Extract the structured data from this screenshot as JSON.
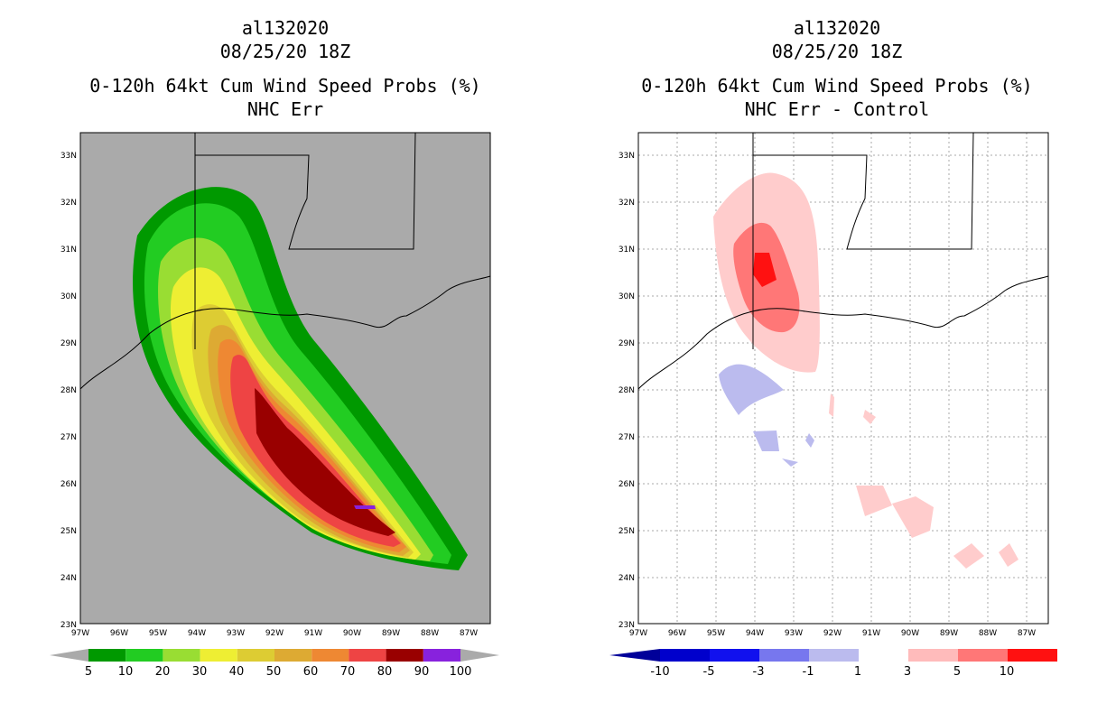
{
  "left_panel": {
    "storm_id": "al132020",
    "datetime": "08/25/20 18Z",
    "product": "0-120h 64kt Cum Wind Speed Probs (%)",
    "subtitle": "NHC Err",
    "colorbar": {
      "labels": [
        "5",
        "10",
        "20",
        "30",
        "40",
        "50",
        "60",
        "70",
        "80",
        "90",
        "100"
      ],
      "colors": [
        "#009900",
        "#22cc22",
        "#99dd33",
        "#eeee33",
        "#ddcc33",
        "#ddaa33",
        "#ee8833",
        "#ee4444",
        "#990000",
        "#8822dd"
      ]
    }
  },
  "right_panel": {
    "storm_id": "al132020",
    "datetime": "08/25/20 18Z",
    "product": "0-120h 64kt Cum Wind Speed Probs (%)",
    "subtitle": "NHC Err - Control",
    "colorbar": {
      "labels": [
        "-10",
        "-5",
        "-3",
        "-1",
        "1",
        "3",
        "5",
        "10"
      ],
      "colors": [
        "#0000cc",
        "#1111ee",
        "#7777ee",
        "#bbbbee",
        "#ffffff",
        "#ffbbbb",
        "#ff7777",
        "#ff1111",
        "#990000",
        "#770000"
      ]
    }
  },
  "axes": {
    "lat_labels": [
      "33N",
      "32N",
      "31N",
      "30N",
      "29N",
      "28N",
      "27N",
      "26N",
      "25N",
      "24N",
      "23N"
    ],
    "lon_labels": [
      "97W",
      "96W",
      "95W",
      "94W",
      "93W",
      "92W",
      "91W",
      "90W",
      "89W",
      "88W",
      "87W"
    ]
  }
}
